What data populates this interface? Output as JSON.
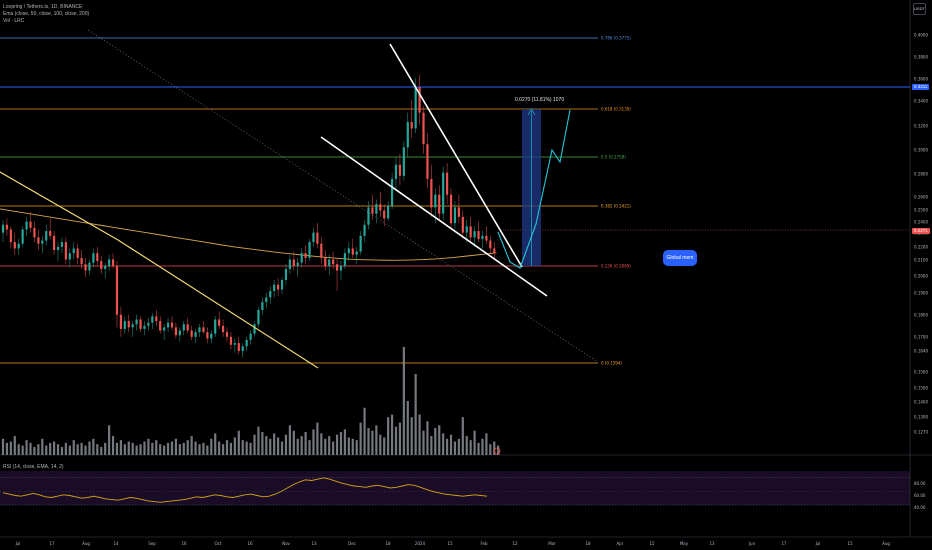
{
  "header": {
    "symbol_line": "Loopring / Tethers.ts, 1D, BINANCE",
    "ema_line": "Ema (close, 50, close, 100, close, 200)",
    "vol_line": "Vol · LRC"
  },
  "currency": "USDT",
  "rsi_label": "RSI (14, close, EMA, 14, 2)",
  "target_label": "0.0270 (11.81%) 1070",
  "global_button": "Global mem",
  "colors": {
    "up": "#26a69a",
    "down": "#ef5350",
    "trendline": "#ffffff",
    "downtrend": "#f0d875",
    "ema_long": "#d8a84a",
    "projection": "#26c6da",
    "target_box": "#1e3a8a",
    "rsi_line": "#d4a418",
    "rsi_band": "#1f0e2e",
    "dotted": "#5d606b"
  },
  "chart_data": {
    "type": "candlestick",
    "price_axis": {
      "ticks": [
        "0.4000",
        "0.3800",
        "0.3600",
        "0.3400",
        "0.3200",
        "0.3000",
        "0.2800",
        "0.2600",
        "0.2500",
        "0.2400",
        "0.2300",
        "0.2200",
        "0.2100",
        "0.2000",
        "0.1900",
        "0.1800",
        "0.1700",
        "0.1640",
        "0.1560",
        "0.1500",
        "0.1400",
        "0.1300",
        "0.1270"
      ],
      "current_price": "0.2271",
      "marker_price": "0.3311"
    },
    "rsi_axis": {
      "ticks": [
        "80.00",
        "60.00",
        "40.00"
      ]
    },
    "x_axis": {
      "ticks": [
        "Jul",
        "17",
        "Aug",
        "14",
        "Sep",
        "16",
        "Oct",
        "16",
        "Nov",
        "13",
        "Dec",
        "18",
        "2024",
        "15",
        "Feb",
        "12",
        "Mar",
        "18",
        "Apr",
        "15",
        "May",
        "13",
        "Jun",
        "17",
        "Jul",
        "15",
        "Aug"
      ]
    },
    "fib_levels": [
      {
        "label": "0.786 (0.3775)",
        "color": "#4a90e2"
      },
      {
        "label": "0.618 (0.3139)",
        "color": "#f7931a"
      },
      {
        "label": "0.5 (0.2758)",
        "color": "#4caf50"
      },
      {
        "label": "0.382 (0.2421)",
        "color": "#f5a623"
      },
      {
        "label": "0.236 (0.2069)",
        "color": "#ef5350"
      },
      {
        "label": "0 (0.1594)",
        "color": "#f5a623"
      }
    ],
    "candles": [
      [
        0.242,
        0.25,
        0.236,
        0.247
      ],
      [
        0.247,
        0.251,
        0.24,
        0.244
      ],
      [
        0.244,
        0.246,
        0.232,
        0.236
      ],
      [
        0.236,
        0.242,
        0.228,
        0.232
      ],
      [
        0.232,
        0.238,
        0.228,
        0.235
      ],
      [
        0.235,
        0.246,
        0.233,
        0.244
      ],
      [
        0.244,
        0.252,
        0.24,
        0.249
      ],
      [
        0.249,
        0.255,
        0.242,
        0.245
      ],
      [
        0.245,
        0.249,
        0.236,
        0.239
      ],
      [
        0.239,
        0.244,
        0.231,
        0.235
      ],
      [
        0.235,
        0.24,
        0.229,
        0.237
      ],
      [
        0.237,
        0.247,
        0.234,
        0.243
      ],
      [
        0.243,
        0.251,
        0.238,
        0.24
      ],
      [
        0.24,
        0.243,
        0.228,
        0.231
      ],
      [
        0.231,
        0.236,
        0.224,
        0.233
      ],
      [
        0.233,
        0.239,
        0.229,
        0.236
      ],
      [
        0.236,
        0.239,
        0.222,
        0.225
      ],
      [
        0.225,
        0.232,
        0.22,
        0.229
      ],
      [
        0.229,
        0.236,
        0.225,
        0.232
      ],
      [
        0.232,
        0.235,
        0.222,
        0.226
      ],
      [
        0.226,
        0.231,
        0.219,
        0.222
      ],
      [
        0.222,
        0.226,
        0.214,
        0.218
      ],
      [
        0.218,
        0.225,
        0.215,
        0.223
      ],
      [
        0.223,
        0.232,
        0.22,
        0.229
      ],
      [
        0.229,
        0.233,
        0.221,
        0.224
      ],
      [
        0.224,
        0.227,
        0.216,
        0.219
      ],
      [
        0.219,
        0.223,
        0.213,
        0.221
      ],
      [
        0.221,
        0.228,
        0.218,
        0.225
      ],
      [
        0.225,
        0.229,
        0.219,
        0.221
      ],
      [
        0.221,
        0.224,
        0.182,
        0.19
      ],
      [
        0.19,
        0.195,
        0.176,
        0.181
      ],
      [
        0.181,
        0.189,
        0.178,
        0.186
      ],
      [
        0.186,
        0.19,
        0.179,
        0.182
      ],
      [
        0.182,
        0.186,
        0.176,
        0.184
      ],
      [
        0.184,
        0.19,
        0.18,
        0.187
      ],
      [
        0.187,
        0.189,
        0.179,
        0.181
      ],
      [
        0.181,
        0.186,
        0.177,
        0.183
      ],
      [
        0.183,
        0.188,
        0.18,
        0.185
      ],
      [
        0.185,
        0.191,
        0.181,
        0.189
      ],
      [
        0.189,
        0.193,
        0.183,
        0.186
      ],
      [
        0.186,
        0.189,
        0.178,
        0.18
      ],
      [
        0.18,
        0.184,
        0.174,
        0.182
      ],
      [
        0.182,
        0.188,
        0.179,
        0.185
      ],
      [
        0.185,
        0.189,
        0.18,
        0.182
      ],
      [
        0.182,
        0.185,
        0.175,
        0.177
      ],
      [
        0.177,
        0.182,
        0.173,
        0.18
      ],
      [
        0.18,
        0.186,
        0.177,
        0.184
      ],
      [
        0.184,
        0.188,
        0.178,
        0.18
      ],
      [
        0.18,
        0.183,
        0.174,
        0.176
      ],
      [
        0.176,
        0.181,
        0.172,
        0.179
      ],
      [
        0.179,
        0.184,
        0.176,
        0.182
      ],
      [
        0.182,
        0.186,
        0.178,
        0.179
      ],
      [
        0.179,
        0.182,
        0.172,
        0.175
      ],
      [
        0.175,
        0.18,
        0.172,
        0.178
      ],
      [
        0.178,
        0.189,
        0.176,
        0.187
      ],
      [
        0.187,
        0.192,
        0.181,
        0.183
      ],
      [
        0.183,
        0.187,
        0.176,
        0.179
      ],
      [
        0.179,
        0.182,
        0.173,
        0.176
      ],
      [
        0.176,
        0.179,
        0.168,
        0.171
      ],
      [
        0.171,
        0.175,
        0.166,
        0.172
      ],
      [
        0.172,
        0.176,
        0.165,
        0.167
      ],
      [
        0.167,
        0.172,
        0.163,
        0.17
      ],
      [
        0.17,
        0.176,
        0.167,
        0.174
      ],
      [
        0.174,
        0.18,
        0.171,
        0.178
      ],
      [
        0.178,
        0.186,
        0.176,
        0.184
      ],
      [
        0.184,
        0.195,
        0.182,
        0.193
      ],
      [
        0.193,
        0.201,
        0.19,
        0.198
      ],
      [
        0.198,
        0.204,
        0.194,
        0.201
      ],
      [
        0.201,
        0.208,
        0.197,
        0.205
      ],
      [
        0.205,
        0.212,
        0.201,
        0.209
      ],
      [
        0.209,
        0.213,
        0.202,
        0.206
      ],
      [
        0.206,
        0.214,
        0.203,
        0.212
      ],
      [
        0.212,
        0.222,
        0.209,
        0.219
      ],
      [
        0.219,
        0.228,
        0.216,
        0.225
      ],
      [
        0.225,
        0.23,
        0.218,
        0.221
      ],
      [
        0.221,
        0.226,
        0.214,
        0.223
      ],
      [
        0.223,
        0.232,
        0.22,
        0.229
      ],
      [
        0.229,
        0.234,
        0.222,
        0.226
      ],
      [
        0.226,
        0.238,
        0.224,
        0.236
      ],
      [
        0.236,
        0.245,
        0.233,
        0.242
      ],
      [
        0.242,
        0.248,
        0.232,
        0.235
      ],
      [
        0.235,
        0.239,
        0.222,
        0.226
      ],
      [
        0.226,
        0.231,
        0.218,
        0.221
      ],
      [
        0.221,
        0.228,
        0.215,
        0.225
      ],
      [
        0.225,
        0.23,
        0.219,
        0.222
      ],
      [
        0.222,
        0.226,
        0.205,
        0.218
      ],
      [
        0.218,
        0.224,
        0.212,
        0.221
      ],
      [
        0.221,
        0.232,
        0.219,
        0.229
      ],
      [
        0.229,
        0.236,
        0.224,
        0.232
      ],
      [
        0.232,
        0.238,
        0.226,
        0.228
      ],
      [
        0.228,
        0.233,
        0.222,
        0.23
      ],
      [
        0.23,
        0.243,
        0.228,
        0.24
      ],
      [
        0.24,
        0.25,
        0.236,
        0.247
      ],
      [
        0.247,
        0.262,
        0.244,
        0.258
      ],
      [
        0.258,
        0.266,
        0.25,
        0.254
      ],
      [
        0.254,
        0.263,
        0.248,
        0.26
      ],
      [
        0.26,
        0.268,
        0.252,
        0.256
      ],
      [
        0.256,
        0.26,
        0.246,
        0.251
      ],
      [
        0.251,
        0.262,
        0.249,
        0.259
      ],
      [
        0.259,
        0.28,
        0.257,
        0.276
      ],
      [
        0.276,
        0.29,
        0.27,
        0.285
      ],
      [
        0.285,
        0.292,
        0.272,
        0.278
      ],
      [
        0.278,
        0.3,
        0.275,
        0.296
      ],
      [
        0.296,
        0.318,
        0.29,
        0.312
      ],
      [
        0.312,
        0.326,
        0.302,
        0.308
      ],
      [
        0.308,
        0.34,
        0.305,
        0.334
      ],
      [
        0.334,
        0.342,
        0.31,
        0.318
      ],
      [
        0.318,
        0.322,
        0.292,
        0.298
      ],
      [
        0.298,
        0.305,
        0.27,
        0.276
      ],
      [
        0.276,
        0.285,
        0.252,
        0.258
      ],
      [
        0.258,
        0.27,
        0.248,
        0.266
      ],
      [
        0.266,
        0.272,
        0.25,
        0.254
      ],
      [
        0.254,
        0.284,
        0.25,
        0.28
      ],
      [
        0.28,
        0.286,
        0.26,
        0.266
      ],
      [
        0.266,
        0.27,
        0.244,
        0.248
      ],
      [
        0.248,
        0.262,
        0.244,
        0.258
      ],
      [
        0.258,
        0.266,
        0.248,
        0.252
      ],
      [
        0.252,
        0.256,
        0.238,
        0.242
      ],
      [
        0.242,
        0.25,
        0.236,
        0.246
      ],
      [
        0.246,
        0.252,
        0.236,
        0.239
      ],
      [
        0.239,
        0.246,
        0.233,
        0.243
      ],
      [
        0.243,
        0.249,
        0.236,
        0.238
      ],
      [
        0.238,
        0.243,
        0.232,
        0.24
      ],
      [
        0.24,
        0.246,
        0.235,
        0.237
      ],
      [
        0.237,
        0.24,
        0.229,
        0.232
      ],
      [
        0.232,
        0.236,
        0.226,
        0.229
      ]
    ],
    "ema_long": [
      0.257,
      0.2555,
      0.254,
      0.2525,
      0.251,
      0.2495,
      0.248,
      0.2465,
      0.245,
      0.2435,
      0.242,
      0.2405,
      0.239,
      0.2375,
      0.236,
      0.2345,
      0.233,
      0.2318,
      0.2306,
      0.2295,
      0.2285,
      0.2275,
      0.2266,
      0.2258,
      0.2252,
      0.2248,
      0.2246,
      0.2245,
      0.2246,
      0.2249,
      0.2254,
      0.2262,
      0.2272,
      0.2282,
      0.2292
    ],
    "projection_path": [
      [
        0.229,
        0.2069
      ],
      [
        0.232,
        0.242
      ],
      [
        0.237,
        0.227
      ],
      [
        0.248,
        0.2758
      ],
      [
        0.252,
        0.266
      ],
      [
        0.26,
        0.3139
      ]
    ],
    "volume": [
      12,
      9,
      10,
      14,
      8,
      7,
      11,
      9,
      6,
      8,
      12,
      7,
      9,
      10,
      8,
      6,
      9,
      7,
      11,
      8,
      9,
      7,
      10,
      12,
      8,
      6,
      9,
      22,
      14,
      9,
      11,
      8,
      10,
      9,
      7,
      8,
      10,
      12,
      9,
      11,
      8,
      7,
      9,
      10,
      12,
      8,
      9,
      11,
      14,
      10,
      8,
      9,
      7,
      12,
      16,
      10,
      8,
      11,
      9,
      13,
      18,
      11,
      10,
      9,
      15,
      21,
      17,
      14,
      12,
      16,
      13,
      10,
      15,
      22,
      18,
      12,
      14,
      17,
      11,
      19,
      24,
      16,
      12,
      14,
      10,
      15,
      17,
      19,
      13,
      12,
      11,
      24,
      35,
      20,
      18,
      22,
      15,
      13,
      28,
      30,
      21,
      24,
      80,
      40,
      28,
      60,
      30,
      18,
      25,
      14,
      20,
      22,
      16,
      12,
      15,
      10,
      12,
      28,
      14,
      11,
      18,
      9,
      12,
      16,
      8,
      10,
      7
    ],
    "rsi": [
      48,
      46,
      44,
      43,
      45,
      47,
      45,
      42,
      41,
      43,
      45,
      44,
      42,
      40,
      41,
      43,
      41,
      39,
      38,
      37,
      39,
      41,
      40,
      38,
      36,
      35,
      34,
      35,
      36,
      37,
      38,
      40,
      42,
      41,
      43,
      45,
      44,
      42,
      41,
      43,
      45,
      46,
      44,
      42,
      43,
      46,
      50,
      55,
      60,
      64,
      67,
      66,
      68,
      70,
      68,
      65,
      62,
      60,
      58,
      57,
      56,
      58,
      59,
      57,
      55,
      56,
      58,
      60,
      59,
      56,
      53,
      50,
      48,
      46,
      45,
      44,
      43,
      44,
      45,
      44,
      43
    ]
  }
}
